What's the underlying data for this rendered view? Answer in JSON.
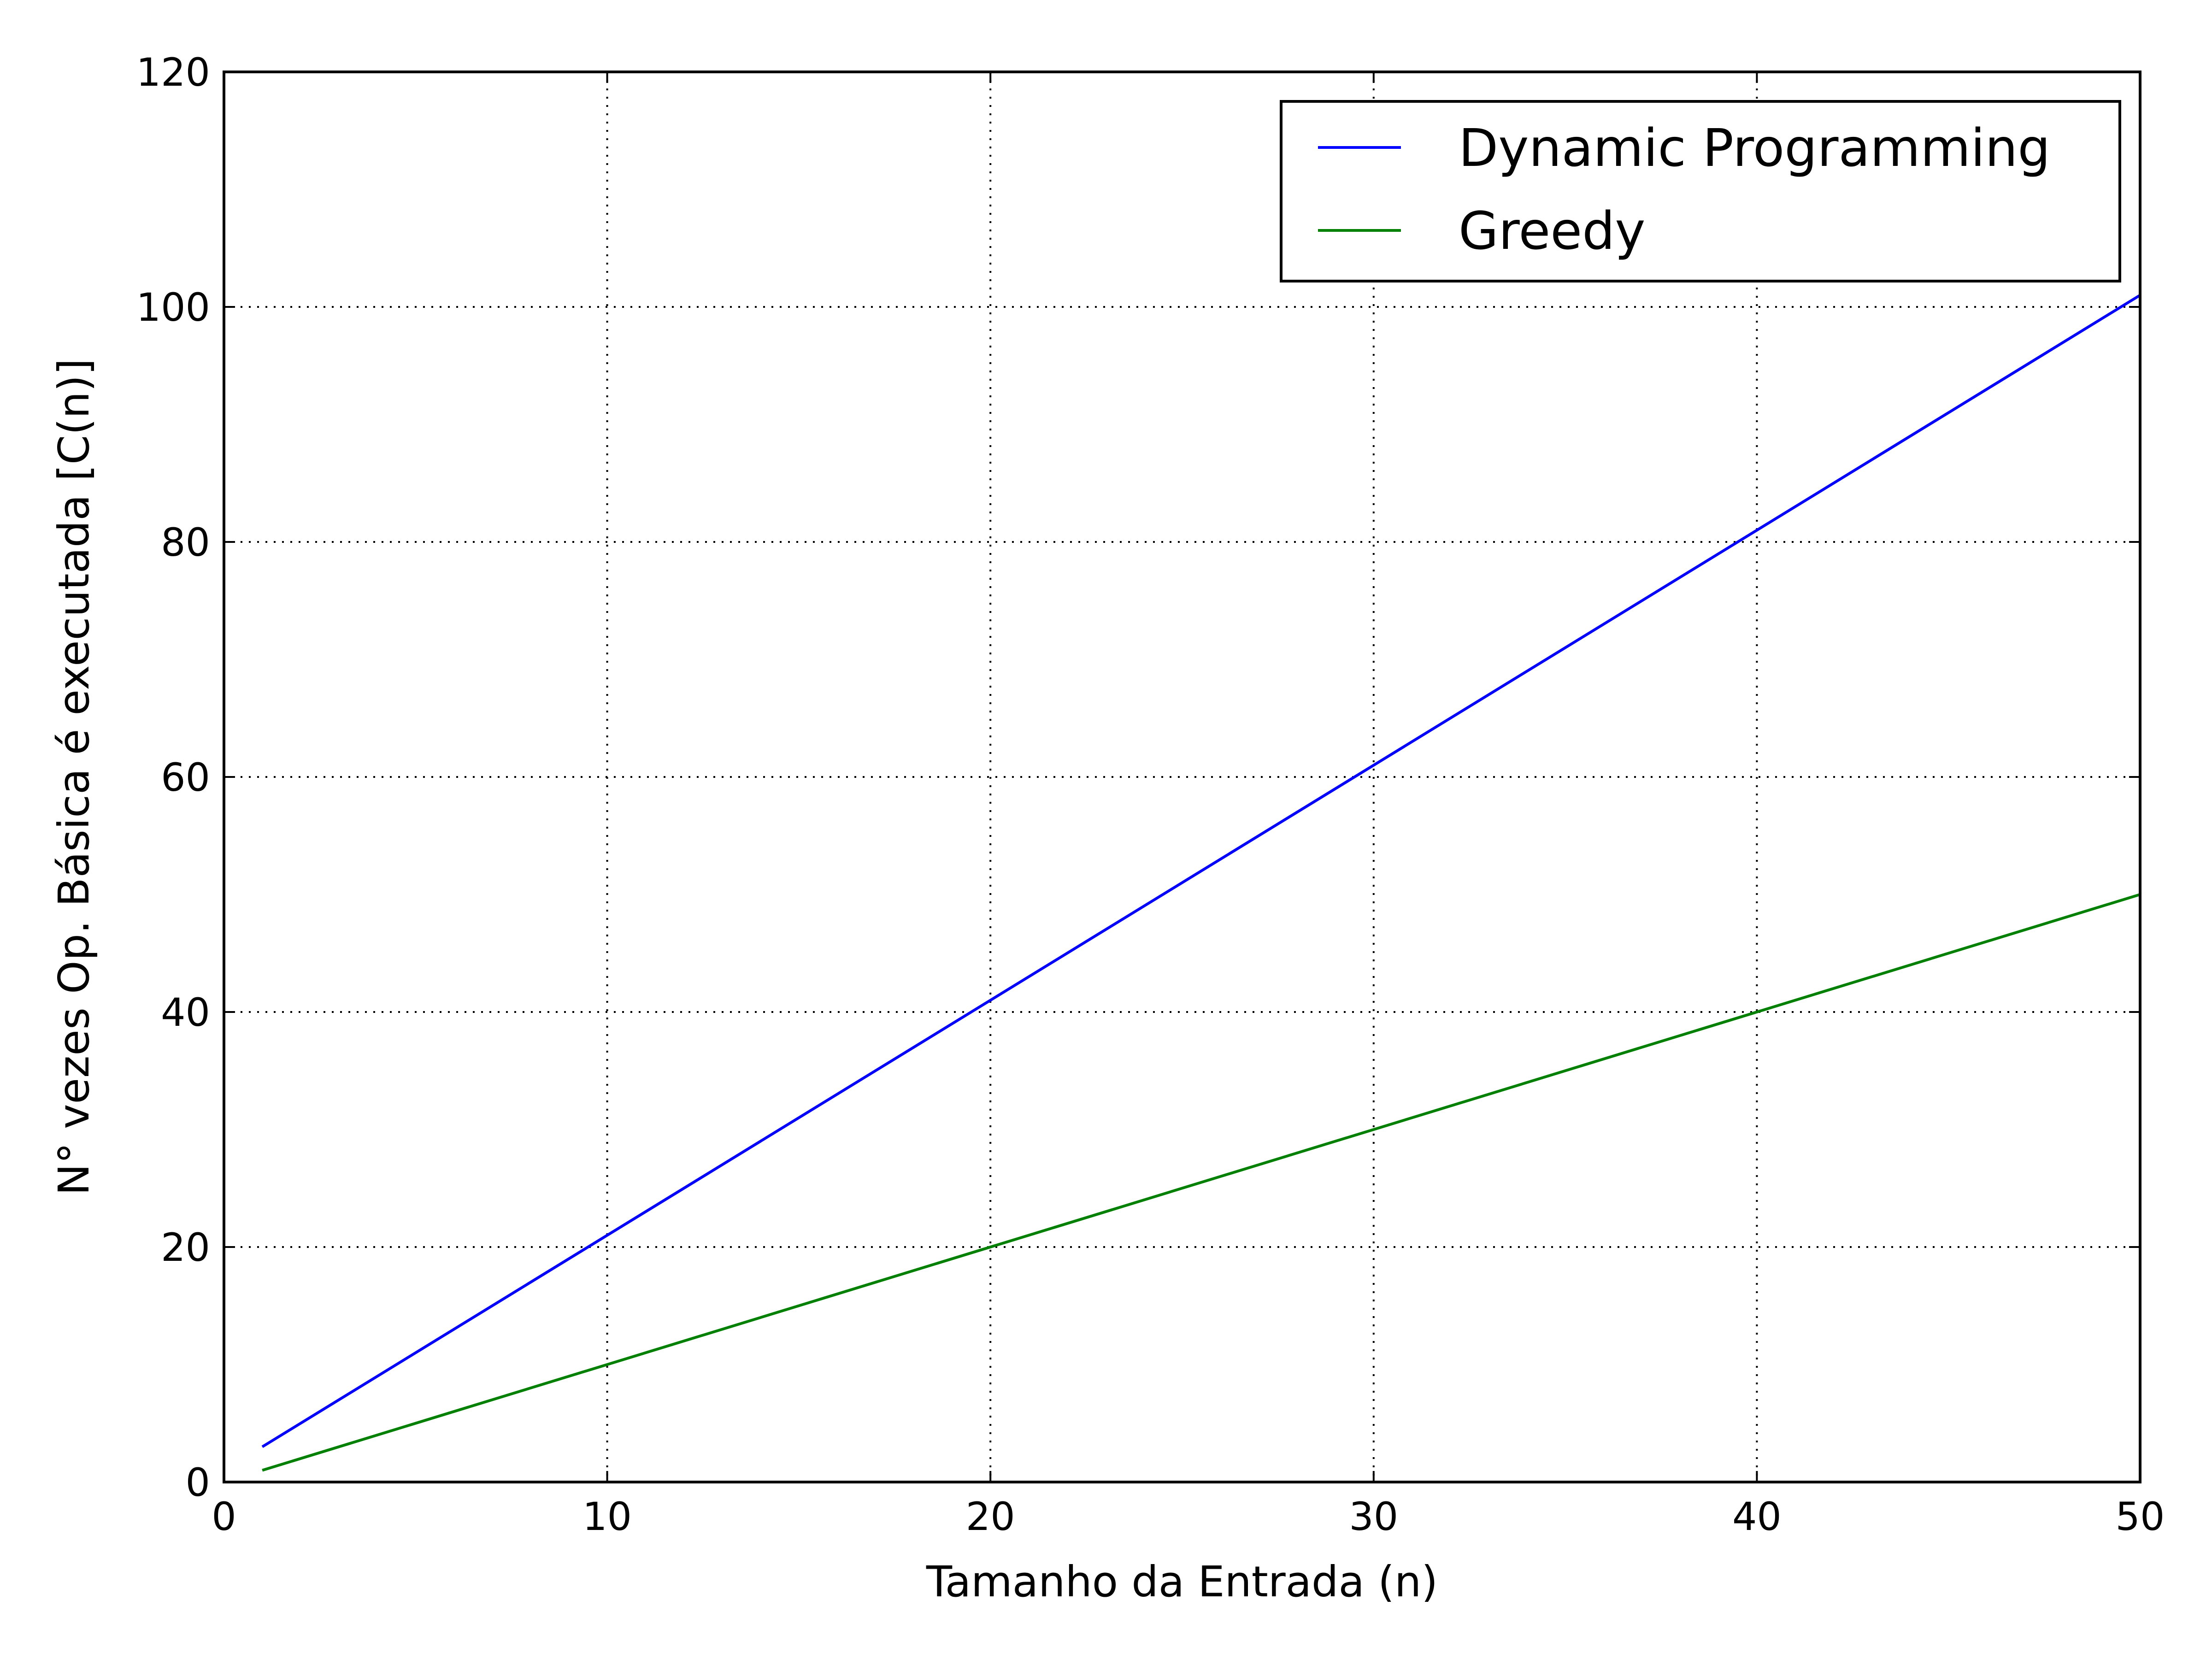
{
  "chart_data": {
    "type": "line",
    "title": "",
    "xlabel": "Tamanho da Entrada (n)",
    "ylabel": "N° vezes Op. Básica é executada [C(n)]",
    "xlim": [
      0,
      50
    ],
    "ylim": [
      0,
      120
    ],
    "xticks": [
      0,
      10,
      20,
      30,
      40,
      50
    ],
    "yticks": [
      0,
      20,
      40,
      60,
      80,
      100,
      120
    ],
    "grid": true,
    "legend_position": "top-right",
    "series": [
      {
        "name": "Dynamic Programming",
        "color": "#0000ff",
        "x": [
          1,
          50
        ],
        "y": [
          3,
          101
        ]
      },
      {
        "name": "Greedy",
        "color": "#008000",
        "x": [
          1,
          50
        ],
        "y": [
          1,
          50
        ]
      }
    ]
  }
}
